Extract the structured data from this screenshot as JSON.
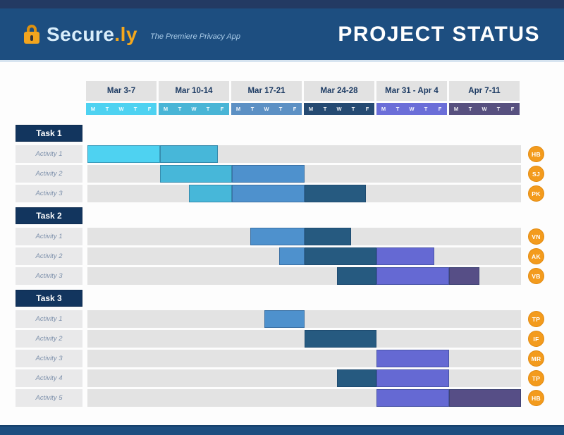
{
  "header": {
    "logo_text": "Secure",
    "logo_suffix": ".ly",
    "tagline": "The Premiere Privacy App",
    "title": "PROJECT STATUS"
  },
  "colors": {
    "header_bg": "#1d4e80",
    "top_strip": "#233a63",
    "accent_orange": "#f39b1d",
    "task_header_bg": "#12355e",
    "track_gray": "#e3e3e3",
    "bar_palette": {
      "cyan": "#4ed2f1",
      "teal": "#47b7d9",
      "blue": "#4e91cd",
      "navy": "#265a80",
      "purple": "#6569d3",
      "darkpurple": "#564e86"
    }
  },
  "calendar": {
    "days": [
      "M",
      "T",
      "W",
      "T",
      "F"
    ],
    "weeks": [
      {
        "label": "Mar 3-7",
        "strip_color": "#4ed2f1"
      },
      {
        "label": "Mar 10-14",
        "strip_color": "#49b5d6"
      },
      {
        "label": "Mar 17-21",
        "strip_color": "#5c90c4"
      },
      {
        "label": "Mar 24-28",
        "strip_color": "#254a72"
      },
      {
        "label": "Mar 31 - Apr 4",
        "strip_color": "#6b6ed8"
      },
      {
        "label": "Apr 7-11",
        "strip_color": "#57507f"
      }
    ]
  },
  "chart_data": {
    "type": "bar",
    "subtype": "gantt",
    "title": "PROJECT STATUS",
    "x_unit": "weeks (0 = Mon Mar 3, each week = Mon-Fri)",
    "x_range": [
      0,
      6
    ],
    "columns": [
      "Mar 3-7",
      "Mar 10-14",
      "Mar 17-21",
      "Mar 24-28",
      "Mar 31 - Apr 4",
      "Apr 7-11"
    ],
    "tasks": [
      {
        "name": "Task 1",
        "activities": [
          {
            "name": "Activity 1",
            "assignee": "HB",
            "segments": [
              {
                "start": 0,
                "end": 1,
                "color": "cyan"
              },
              {
                "start": 1,
                "end": 1.8,
                "color": "teal"
              }
            ]
          },
          {
            "name": "Activity 2",
            "assignee": "SJ",
            "segments": [
              {
                "start": 1,
                "end": 2,
                "color": "teal"
              },
              {
                "start": 2,
                "end": 3,
                "color": "blue"
              }
            ]
          },
          {
            "name": "Activity 3",
            "assignee": "PK",
            "segments": [
              {
                "start": 1.4,
                "end": 2,
                "color": "teal"
              },
              {
                "start": 2,
                "end": 3,
                "color": "blue"
              },
              {
                "start": 3,
                "end": 3.85,
                "color": "navy"
              }
            ]
          }
        ]
      },
      {
        "name": "Task 2",
        "activities": [
          {
            "name": "Activity 1",
            "assignee": "VN",
            "segments": [
              {
                "start": 2.25,
                "end": 3,
                "color": "blue"
              },
              {
                "start": 3,
                "end": 3.65,
                "color": "navy"
              }
            ]
          },
          {
            "name": "Activity 2",
            "assignee": "AK",
            "segments": [
              {
                "start": 2.65,
                "end": 3,
                "color": "blue"
              },
              {
                "start": 3,
                "end": 4,
                "color": "navy"
              },
              {
                "start": 4,
                "end": 4.8,
                "color": "purple"
              }
            ]
          },
          {
            "name": "Activity 3",
            "assignee": "VB",
            "segments": [
              {
                "start": 3.45,
                "end": 4,
                "color": "navy"
              },
              {
                "start": 4,
                "end": 5,
                "color": "purple"
              },
              {
                "start": 5,
                "end": 5.42,
                "color": "darkpurple"
              }
            ]
          }
        ]
      },
      {
        "name": "Task 3",
        "activities": [
          {
            "name": "Activity 1",
            "assignee": "TP",
            "segments": [
              {
                "start": 2.45,
                "end": 3,
                "color": "blue"
              }
            ]
          },
          {
            "name": "Activity 2",
            "assignee": "IF",
            "segments": [
              {
                "start": 3,
                "end": 4,
                "color": "navy"
              }
            ]
          },
          {
            "name": "Activity 3",
            "assignee": "MR",
            "segments": [
              {
                "start": 4,
                "end": 5,
                "color": "purple"
              }
            ]
          },
          {
            "name": "Activity 4",
            "assignee": "TP",
            "segments": [
              {
                "start": 3.45,
                "end": 4,
                "color": "navy"
              },
              {
                "start": 4,
                "end": 5,
                "color": "purple"
              }
            ]
          },
          {
            "name": "Activity 5",
            "assignee": "HB",
            "segments": [
              {
                "start": 4,
                "end": 5,
                "color": "purple"
              },
              {
                "start": 5,
                "end": 6,
                "color": "darkpurple"
              }
            ]
          }
        ]
      }
    ]
  }
}
